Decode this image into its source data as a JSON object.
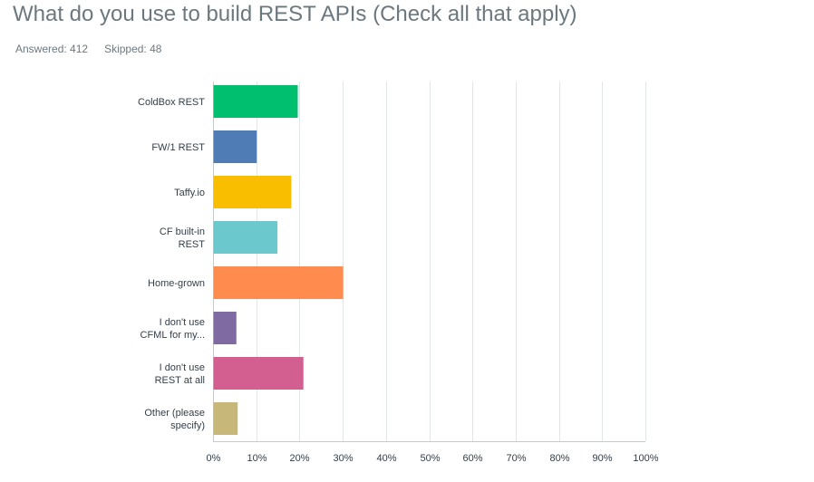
{
  "header": {
    "title": "What do you use to build REST APIs (Check all that apply)",
    "answered_label": "Answered: 412",
    "skipped_label": "Skipped: 48"
  },
  "chart_data": {
    "type": "bar",
    "orientation": "horizontal",
    "title": "What do you use to build REST APIs (Check all that apply)",
    "categories": [
      [
        "ColdBox REST"
      ],
      [
        "FW/1 REST"
      ],
      [
        "Taffy.io"
      ],
      [
        "CF built-in",
        "REST"
      ],
      [
        "Home-grown"
      ],
      [
        "I don't use",
        "CFML for my..."
      ],
      [
        "I don't use",
        "REST at all"
      ],
      [
        "Other (please",
        "specify)"
      ]
    ],
    "values": [
      19.5,
      10.0,
      18.0,
      14.8,
      30.0,
      5.3,
      20.8,
      5.6
    ],
    "colors": [
      "#00bf6f",
      "#507cb6",
      "#f9be00",
      "#6bc8cd",
      "#ff8b4f",
      "#7f6aa1",
      "#d25f90",
      "#c7b879"
    ],
    "xlim": [
      0,
      100
    ],
    "xticks": [
      "0%",
      "10%",
      "20%",
      "30%",
      "40%",
      "50%",
      "60%",
      "70%",
      "80%",
      "90%",
      "100%"
    ],
    "xlabel": "",
    "ylabel": "",
    "grid": true,
    "legend": "none",
    "gridline_color": "#e1e6e8",
    "axis_color": "#c3cbcf"
  }
}
